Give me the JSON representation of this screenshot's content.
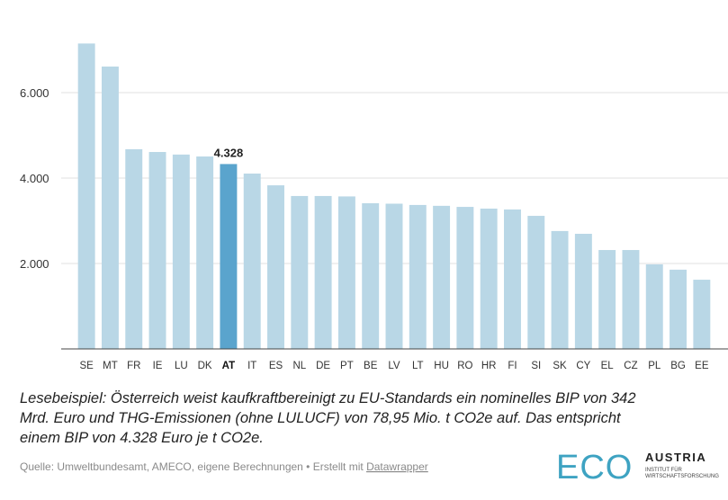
{
  "chart_data": {
    "type": "bar",
    "categories": [
      "SE",
      "MT",
      "FR",
      "IE",
      "LU",
      "DK",
      "AT",
      "IT",
      "ES",
      "NL",
      "DE",
      "PT",
      "BE",
      "LV",
      "LT",
      "HU",
      "RO",
      "HR",
      "FI",
      "SI",
      "SK",
      "CY",
      "EL",
      "CZ",
      "PL",
      "BG",
      "EE"
    ],
    "values": [
      7150,
      6610,
      4675,
      4610,
      4550,
      4505,
      4328,
      4105,
      3830,
      3580,
      3580,
      3570,
      3410,
      3400,
      3370,
      3350,
      3325,
      3285,
      3265,
      3115,
      2760,
      2695,
      2315,
      2315,
      1980,
      1855,
      1620
    ],
    "value_labels": [
      null,
      null,
      null,
      null,
      null,
      null,
      "4.328",
      null,
      null,
      null,
      null,
      null,
      null,
      null,
      null,
      null,
      null,
      null,
      null,
      null,
      null,
      null,
      null,
      null,
      null,
      null,
      null
    ],
    "colors": [
      "#b9d7e6",
      "#b9d7e6",
      "#b9d7e6",
      "#b9d7e6",
      "#b9d7e6",
      "#b9d7e6",
      "#5aa4cd",
      "#b9d7e6",
      "#b9d7e6",
      "#b9d7e6",
      "#b9d7e6",
      "#b9d7e6",
      "#b9d7e6",
      "#b9d7e6",
      "#b9d7e6",
      "#b9d7e6",
      "#b9d7e6",
      "#b9d7e6",
      "#b9d7e6",
      "#b9d7e6",
      "#b9d7e6",
      "#b9d7e6",
      "#b9d7e6",
      "#b9d7e6",
      "#b9d7e6",
      "#b9d7e6",
      "#b9d7e6"
    ],
    "ylim": [
      0,
      8000
    ],
    "yticks": [
      {
        "value": 2000,
        "label": "2.000"
      },
      {
        "value": 4000,
        "label": "4.000"
      },
      {
        "value": 6000,
        "label": "6.000"
      }
    ],
    "grid": true,
    "note": [
      "Lesebeispiel: Österreich weist kaufkraftbereinigt zu EU-Standards ein nominelles BIP von 342",
      "Mrd. Euro und THG-Emissionen (ohne LULUCF) von 78,95 Mio. t CO2e auf. Das entspricht",
      "einem BIP von 4.328 Euro je t CO2e."
    ],
    "source": "Quelle: Umweltbundesamt, AMECO, eigene Berechnungen • Erstellt mit ",
    "source_link": "Datawrapper",
    "logo": {
      "mark": "ECO",
      "name": "AUSTRIA",
      "sub": [
        "INSTITUT FÜR",
        "WIRTSCHAFTSFORSCHUNG"
      ]
    }
  }
}
